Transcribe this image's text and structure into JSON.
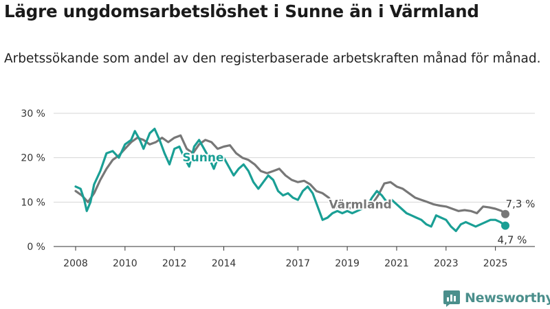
{
  "title": "Lägre ungdomsarbetslöshet i Sunne än i Värmland",
  "subtitle": "Arbetssökande som andel av den registerbaserade arbetskraften månad för månad.",
  "brand": "Newsworthy",
  "chart_data": {
    "type": "line",
    "title": "Lägre ungdomsarbetslöshet i Sunne än i Värmland",
    "subtitle": "Arbetssökande som andel av den registerbaserade arbetskraften månad för månad.",
    "ylim": [
      0,
      30
    ],
    "yticks": [
      0,
      10,
      20,
      30
    ],
    "ytick_labels": [
      "0 %",
      "10 %",
      "20 %",
      "30 %"
    ],
    "xlim": [
      2007.6,
      2025.75
    ],
    "xticks": [
      2008,
      2010,
      2012,
      2014,
      2017,
      2019,
      2021,
      2023,
      2025
    ],
    "xtick_labels": [
      "2008",
      "2010",
      "2012",
      "2014",
      "2017",
      "2019",
      "2021",
      "2023",
      "2025"
    ],
    "grid": "horizontal",
    "series": [
      {
        "name": "Värmland",
        "color": "#777777",
        "end_label": "7,3 %",
        "points": [
          [
            2008.0,
            12.5
          ],
          [
            2008.25,
            11.5
          ],
          [
            2008.5,
            10.0
          ],
          [
            2008.75,
            12.0
          ],
          [
            2009.0,
            15.0
          ],
          [
            2009.25,
            17.5
          ],
          [
            2009.5,
            19.5
          ],
          [
            2009.75,
            20.5
          ],
          [
            2010.0,
            22.0
          ],
          [
            2010.25,
            23.5
          ],
          [
            2010.5,
            24.5
          ],
          [
            2010.75,
            24.0
          ],
          [
            2011.0,
            23.0
          ],
          [
            2011.25,
            23.5
          ],
          [
            2011.5,
            24.5
          ],
          [
            2011.75,
            23.5
          ],
          [
            2012.0,
            24.5
          ],
          [
            2012.25,
            25.0
          ],
          [
            2012.5,
            22.0
          ],
          [
            2012.75,
            21.0
          ],
          [
            2013.0,
            23.0
          ],
          [
            2013.25,
            24.0
          ],
          [
            2013.5,
            23.5
          ],
          [
            2013.75,
            22.0
          ],
          [
            2014.0,
            22.5
          ],
          [
            2014.25,
            22.8
          ],
          [
            2014.5,
            21.0
          ],
          [
            2014.75,
            20.0
          ],
          [
            2015.0,
            19.5
          ],
          [
            2015.25,
            18.5
          ],
          [
            2015.5,
            17.0
          ],
          [
            2015.75,
            16.5
          ],
          [
            2016.0,
            17.0
          ],
          [
            2016.25,
            17.5
          ],
          [
            2016.5,
            16.0
          ],
          [
            2016.75,
            15.0
          ],
          [
            2017.0,
            14.5
          ],
          [
            2017.25,
            14.8
          ],
          [
            2017.5,
            14.0
          ],
          [
            2017.75,
            12.5
          ],
          [
            2018.0,
            12.0
          ],
          [
            2018.25,
            11.0
          ],
          [
            2018.5,
            9.0
          ],
          [
            2018.75,
            8.5
          ],
          [
            2019.0,
            8.8
          ],
          [
            2019.25,
            8.5
          ],
          [
            2019.5,
            8.8
          ],
          [
            2019.75,
            9.0
          ],
          [
            2020.0,
            9.5
          ],
          [
            2020.25,
            11.5
          ],
          [
            2020.5,
            14.2
          ],
          [
            2020.75,
            14.5
          ],
          [
            2021.0,
            13.5
          ],
          [
            2021.25,
            13.0
          ],
          [
            2021.5,
            12.0
          ],
          [
            2021.75,
            11.0
          ],
          [
            2022.0,
            10.5
          ],
          [
            2022.25,
            10.0
          ],
          [
            2022.5,
            9.5
          ],
          [
            2022.75,
            9.2
          ],
          [
            2023.0,
            9.0
          ],
          [
            2023.25,
            8.5
          ],
          [
            2023.5,
            8.0
          ],
          [
            2023.75,
            8.2
          ],
          [
            2024.0,
            8.0
          ],
          [
            2024.25,
            7.5
          ],
          [
            2024.5,
            9.0
          ],
          [
            2024.75,
            8.8
          ],
          [
            2025.0,
            8.5
          ],
          [
            2025.25,
            8.0
          ],
          [
            2025.4,
            7.3
          ]
        ]
      },
      {
        "name": "Sunne",
        "color": "#1a9f95",
        "end_label": "4,7 %",
        "points": [
          [
            2008.0,
            13.5
          ],
          [
            2008.2,
            13.0
          ],
          [
            2008.35,
            10.5
          ],
          [
            2008.45,
            8.0
          ],
          [
            2008.6,
            10.0
          ],
          [
            2008.75,
            14.0
          ],
          [
            2009.0,
            17.0
          ],
          [
            2009.25,
            21.0
          ],
          [
            2009.5,
            21.5
          ],
          [
            2009.75,
            20.0
          ],
          [
            2010.0,
            23.0
          ],
          [
            2010.25,
            24.0
          ],
          [
            2010.4,
            26.0
          ],
          [
            2010.6,
            24.0
          ],
          [
            2010.75,
            22.0
          ],
          [
            2011.0,
            25.5
          ],
          [
            2011.2,
            26.5
          ],
          [
            2011.4,
            24.0
          ],
          [
            2011.6,
            21.0
          ],
          [
            2011.8,
            18.5
          ],
          [
            2012.0,
            22.0
          ],
          [
            2012.2,
            22.5
          ],
          [
            2012.4,
            20.0
          ],
          [
            2012.6,
            18.0
          ],
          [
            2012.8,
            22.5
          ],
          [
            2013.0,
            24.0
          ],
          [
            2013.2,
            22.0
          ],
          [
            2013.4,
            20.0
          ],
          [
            2013.6,
            17.5
          ],
          [
            2013.8,
            20.5
          ],
          [
            2014.0,
            20.0
          ],
          [
            2014.2,
            18.0
          ],
          [
            2014.4,
            16.0
          ],
          [
            2014.6,
            17.5
          ],
          [
            2014.8,
            18.5
          ],
          [
            2015.0,
            17.0
          ],
          [
            2015.2,
            14.5
          ],
          [
            2015.4,
            13.0
          ],
          [
            2015.6,
            14.5
          ],
          [
            2015.8,
            16.0
          ],
          [
            2016.0,
            15.0
          ],
          [
            2016.2,
            12.5
          ],
          [
            2016.4,
            11.5
          ],
          [
            2016.6,
            12.0
          ],
          [
            2016.8,
            11.0
          ],
          [
            2017.0,
            10.5
          ],
          [
            2017.2,
            12.5
          ],
          [
            2017.4,
            13.5
          ],
          [
            2017.6,
            12.0
          ],
          [
            2017.8,
            9.0
          ],
          [
            2018.0,
            6.0
          ],
          [
            2018.2,
            6.5
          ],
          [
            2018.4,
            7.5
          ],
          [
            2018.6,
            8.0
          ],
          [
            2018.8,
            7.5
          ],
          [
            2019.0,
            8.0
          ],
          [
            2019.2,
            7.5
          ],
          [
            2019.4,
            8.0
          ],
          [
            2019.6,
            8.5
          ],
          [
            2019.8,
            9.0
          ],
          [
            2020.0,
            11.0
          ],
          [
            2020.2,
            12.5
          ],
          [
            2020.4,
            11.5
          ],
          [
            2020.6,
            10.0
          ],
          [
            2020.8,
            10.5
          ],
          [
            2021.0,
            9.5
          ],
          [
            2021.2,
            8.5
          ],
          [
            2021.4,
            7.5
          ],
          [
            2021.6,
            7.0
          ],
          [
            2021.8,
            6.5
          ],
          [
            2022.0,
            6.0
          ],
          [
            2022.2,
            5.0
          ],
          [
            2022.4,
            4.5
          ],
          [
            2022.6,
            7.0
          ],
          [
            2022.8,
            6.5
          ],
          [
            2023.0,
            6.0
          ],
          [
            2023.2,
            4.5
          ],
          [
            2023.4,
            3.5
          ],
          [
            2023.6,
            5.0
          ],
          [
            2023.8,
            5.5
          ],
          [
            2024.0,
            5.0
          ],
          [
            2024.2,
            4.5
          ],
          [
            2024.4,
            5.0
          ],
          [
            2024.6,
            5.5
          ],
          [
            2024.8,
            6.0
          ],
          [
            2025.0,
            6.0
          ],
          [
            2025.2,
            5.5
          ],
          [
            2025.4,
            4.7
          ]
        ]
      }
    ]
  }
}
